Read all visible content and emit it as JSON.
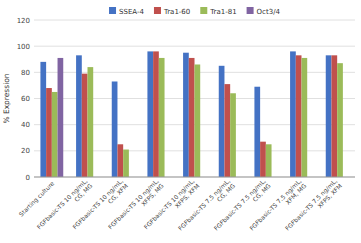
{
  "chart_data": {
    "type": "bar",
    "categories": [
      "Starting culture",
      "FGFbasic-TS 10 ng/mL,\nCG, MG",
      "FGFbasic-TS 10 ng/mL,\nCG, XFM",
      "FGFbasic-TS 10 ng/mL,\nXFPS, MG",
      "FGFbasic-TS 10 ng/mL,\nXFPS, XFM",
      "FGFbasic-TS 7.5 ng/mL,\nCG, MG",
      "FGFbasic-TS 7.5 ng/mL,\nCG, MG",
      "FGFbasic-TS 7.5 ng/mL,\nXFM, MG",
      "FGFbasic-TS 7.5 ng/mL,\nXFPS, XFM"
    ],
    "series": [
      {
        "name": "SSEA-4",
        "color": "#4472C4",
        "values": [
          88,
          93,
          73,
          96,
          95,
          85,
          69,
          96,
          93
        ]
      },
      {
        "name": "Tra1-60",
        "color": "#C0504D",
        "values": [
          68,
          79,
          25,
          96,
          91,
          71,
          27,
          93,
          93
        ]
      },
      {
        "name": "Tra1-81",
        "color": "#9BBB59",
        "values": [
          65,
          84,
          21,
          91,
          86,
          64,
          25,
          91,
          87
        ]
      },
      {
        "name": "Oct3/4",
        "color": "#8064A2",
        "values": [
          91,
          null,
          null,
          null,
          null,
          null,
          null,
          null,
          null
        ]
      }
    ],
    "ylabel": "% Expression",
    "ylim": [
      0,
      120
    ],
    "yticks": [
      0,
      20,
      40,
      60,
      80,
      100,
      120
    ],
    "grid": true,
    "legend": "top"
  }
}
